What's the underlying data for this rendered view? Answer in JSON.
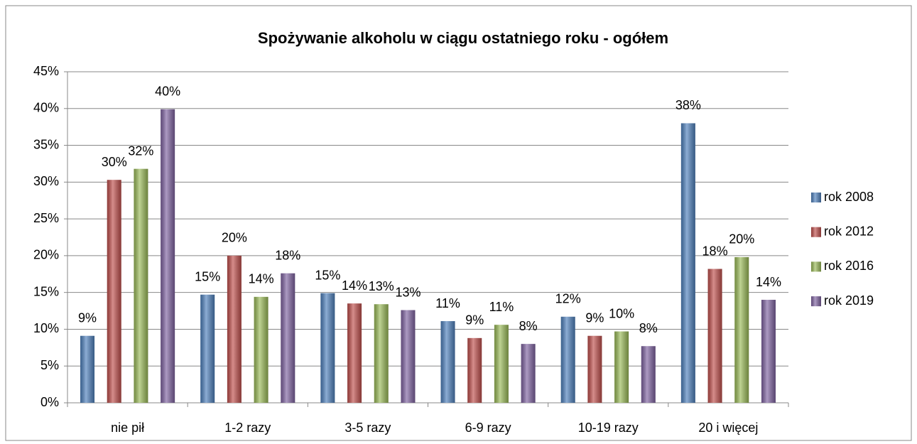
{
  "chart_data": {
    "type": "bar",
    "title": "Spożywanie alkoholu w ciągu ostatniego roku - ogółem",
    "categories": [
      "nie pił",
      "1-2 razy",
      "3-5 razy",
      "6-9 razy",
      "10-19 razy",
      "20 i więcej"
    ],
    "series": [
      {
        "name": "rok 2008",
        "color": "#4f81bd",
        "values": [
          9.1,
          14.7,
          14.9,
          11.1,
          11.7,
          38.0
        ],
        "value_labels": [
          "9%",
          "15%",
          "15%",
          "11%",
          "12%",
          "38%"
        ]
      },
      {
        "name": "rok 2012",
        "color": "#c0504d",
        "values": [
          30.3,
          20.0,
          13.5,
          8.8,
          9.1,
          18.2
        ],
        "value_labels": [
          "30%",
          "20%",
          "14%",
          "9%",
          "9%",
          "18%"
        ]
      },
      {
        "name": "rok 2016",
        "color": "#9bbb59",
        "values": [
          31.8,
          14.4,
          13.4,
          10.6,
          9.7,
          19.8
        ],
        "value_labels": [
          "32%",
          "14%",
          "13%",
          "11%",
          "10%",
          "20%"
        ]
      },
      {
        "name": "rok 2019",
        "color": "#8064a2",
        "values": [
          39.9,
          17.6,
          12.6,
          8.0,
          7.7,
          14.0
        ],
        "value_labels": [
          "40%",
          "18%",
          "13%",
          "8%",
          "8%",
          "14%"
        ]
      }
    ],
    "ylim": [
      0,
      45
    ],
    "yticks": [
      {
        "value": 0,
        "label": "0%"
      },
      {
        "value": 5,
        "label": "5%"
      },
      {
        "value": 10,
        "label": "10%"
      },
      {
        "value": 15,
        "label": "15%"
      },
      {
        "value": 20,
        "label": "20%"
      },
      {
        "value": 25,
        "label": "25%"
      },
      {
        "value": 30,
        "label": "30%"
      },
      {
        "value": 35,
        "label": "35%"
      },
      {
        "value": 40,
        "label": "40%"
      },
      {
        "value": 45,
        "label": "45%"
      }
    ],
    "grid": true,
    "legend": "right"
  }
}
